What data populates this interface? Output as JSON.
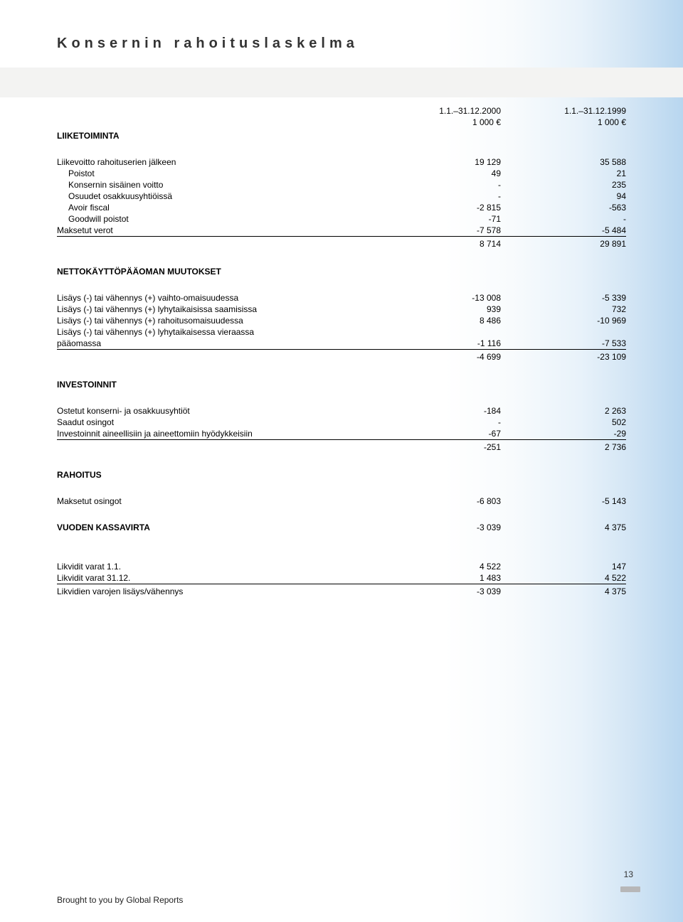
{
  "title": "Konsernin rahoituslaskelma",
  "col_headers": {
    "c1a": "1.1.–31.12.2000",
    "c1b": "1 000 €",
    "c2a": "1.1.–31.12.1999",
    "c2b": "1 000 €"
  },
  "liiketoiminta": {
    "head": "LIIKETOIMINTA",
    "rows": [
      {
        "l": "Liikevoitto rahoituserien jälkeen",
        "c1": "19 129",
        "c2": "35 588"
      },
      {
        "l": "Poistot",
        "c1": "49",
        "c2": "21",
        "indent": true
      },
      {
        "l": "Konsernin sisäinen voitto",
        "c1": "-",
        "c2": "235",
        "indent": true
      },
      {
        "l": "Osuudet osakkuusyhtiöissä",
        "c1": "-",
        "c2": "94",
        "indent": true
      },
      {
        "l": "Avoir fiscal",
        "c1": "-2 815",
        "c2": "-563",
        "indent": true
      },
      {
        "l": "Goodwill poistot",
        "c1": "-71",
        "c2": "-",
        "indent": true
      },
      {
        "l": "Maksetut verot",
        "c1": "-7 578",
        "c2": "-5 484"
      }
    ],
    "subtotal": {
      "c1": "8 714",
      "c2": "29 891"
    }
  },
  "nettokaytto": {
    "head": "NETTOKÄYTTÖPÄÄOMAN MUUTOKSET",
    "rows": [
      {
        "l": "Lisäys (-) tai vähennys (+) vaihto-omaisuudessa",
        "c1": "-13 008",
        "c2": "-5 339"
      },
      {
        "l": "Lisäys (-) tai vähennys (+) lyhytaikaisissa saamisissa",
        "c1": "939",
        "c2": "732"
      },
      {
        "l": "Lisäys (-) tai vähennys (+) rahoitusomaisuudessa",
        "c1": "8 486",
        "c2": "-10 969"
      },
      {
        "l": "Lisäys (-) tai vähennys (+) lyhytaikaisessa vieraassa",
        "c1": "",
        "c2": ""
      },
      {
        "l": "pääomassa",
        "c1": "-1 116",
        "c2": "-7 533"
      }
    ],
    "subtotal": {
      "c1": "-4 699",
      "c2": "-23 109"
    }
  },
  "investoinnit": {
    "head": "INVESTOINNIT",
    "rows": [
      {
        "l": "Ostetut konserni- ja osakkuusyhtiöt",
        "c1": "-184",
        "c2": "2 263"
      },
      {
        "l": "Saadut osingot",
        "c1": "-",
        "c2": "502"
      },
      {
        "l": "Investoinnit aineellisiin ja aineettomiin hyödykkeisiin",
        "c1": "-67",
        "c2": "-29"
      }
    ],
    "subtotal": {
      "c1": "-251",
      "c2": "2 736"
    }
  },
  "rahoitus": {
    "head": "RAHOITUS",
    "rows": [
      {
        "l": "Maksetut osingot",
        "c1": "-6 803",
        "c2": "-5 143"
      }
    ]
  },
  "kassavirta": {
    "l": "VUODEN KASSAVIRTA",
    "c1": "-3 039",
    "c2": "4 375"
  },
  "likvidit": {
    "rows": [
      {
        "l": "Likvidit varat 1.1.",
        "c1": "4 522",
        "c2": "147"
      },
      {
        "l": "Likvidit varat 31.12.",
        "c1": "1 483",
        "c2": "4 522"
      }
    ],
    "final": {
      "l": "Likvidien varojen lisäys/vähennys",
      "c1": "-3 039",
      "c2": "4 375"
    }
  },
  "page_number": "13",
  "footer": "Brought to you by Global Reports"
}
